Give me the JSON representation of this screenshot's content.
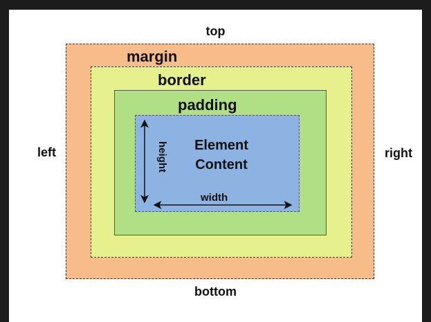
{
  "labels": {
    "top": "top",
    "bottom": "bottom",
    "left": "left",
    "right": "right"
  },
  "boxes": {
    "margin": "margin",
    "border": "border",
    "padding": "padding",
    "content_line1": "Element",
    "content_line2": "Content"
  },
  "dimensions": {
    "width": "width",
    "height": "height"
  },
  "colors": {
    "margin": "#f8bb8a",
    "border": "#e6f08c",
    "padding": "#b1df85",
    "content": "#8db3e2"
  }
}
